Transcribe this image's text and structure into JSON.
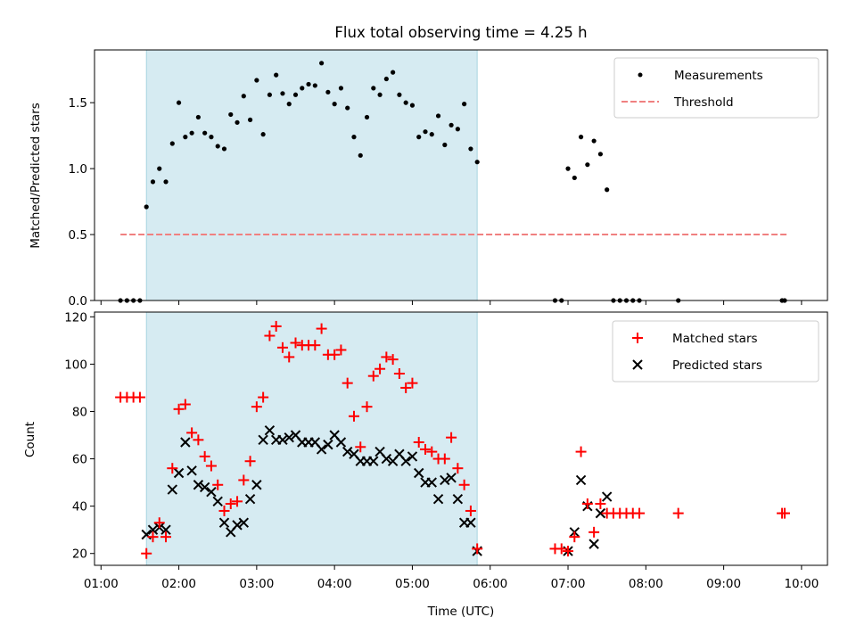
{
  "figure": {
    "title": "Flux total observing time = 4.25 h"
  },
  "chart_data": [
    {
      "type": "scatter",
      "panel": "top",
      "ylabel": "Matched/Predicted stars",
      "xlabel": "",
      "xlim": [
        "00:55",
        "10:20"
      ],
      "ylim": [
        0,
        1.9
      ],
      "yticks": [
        0.0,
        0.5,
        1.0,
        1.5
      ],
      "ytick_labels": [
        "0.0",
        "0.5",
        "1.0",
        "1.5"
      ],
      "legend_position": "top-right",
      "shaded_span": [
        "01:35",
        "05:50"
      ],
      "threshold": {
        "name": "Threshold",
        "y": 0.5,
        "x_range": [
          "01:15",
          "09:50"
        ],
        "color": "#f08080",
        "style": "dashed"
      },
      "series": [
        {
          "name": "Measurements",
          "color": "#000000",
          "marker": "dot",
          "points": [
            [
              "01:15",
              0.0
            ],
            [
              "01:20",
              0.0
            ],
            [
              "01:25",
              0.0
            ],
            [
              "01:30",
              0.0
            ],
            [
              "01:35",
              0.71
            ],
            [
              "01:40",
              0.9
            ],
            [
              "01:45",
              1.0
            ],
            [
              "01:50",
              0.9
            ],
            [
              "01:55",
              1.19
            ],
            [
              "02:00",
              1.5
            ],
            [
              "02:05",
              1.24
            ],
            [
              "02:10",
              1.27
            ],
            [
              "02:15",
              1.39
            ],
            [
              "02:20",
              1.27
            ],
            [
              "02:25",
              1.24
            ],
            [
              "02:30",
              1.17
            ],
            [
              "02:35",
              1.15
            ],
            [
              "02:40",
              1.41
            ],
            [
              "02:45",
              1.35
            ],
            [
              "02:50",
              1.55
            ],
            [
              "02:55",
              1.37
            ],
            [
              "03:00",
              1.67
            ],
            [
              "03:05",
              1.26
            ],
            [
              "03:10",
              1.56
            ],
            [
              "03:15",
              1.71
            ],
            [
              "03:20",
              1.57
            ],
            [
              "03:25",
              1.49
            ],
            [
              "03:30",
              1.56
            ],
            [
              "03:35",
              1.61
            ],
            [
              "03:40",
              1.64
            ],
            [
              "03:45",
              1.63
            ],
            [
              "03:50",
              1.8
            ],
            [
              "03:55",
              1.58
            ],
            [
              "04:00",
              1.49
            ],
            [
              "04:05",
              1.61
            ],
            [
              "04:10",
              1.46
            ],
            [
              "04:15",
              1.24
            ],
            [
              "04:20",
              1.1
            ],
            [
              "04:25",
              1.39
            ],
            [
              "04:30",
              1.61
            ],
            [
              "04:35",
              1.56
            ],
            [
              "04:40",
              1.68
            ],
            [
              "04:45",
              1.73
            ],
            [
              "04:50",
              1.56
            ],
            [
              "04:55",
              1.5
            ],
            [
              "05:00",
              1.48
            ],
            [
              "05:05",
              1.24
            ],
            [
              "05:10",
              1.28
            ],
            [
              "05:15",
              1.26
            ],
            [
              "05:20",
              1.4
            ],
            [
              "05:25",
              1.18
            ],
            [
              "05:30",
              1.33
            ],
            [
              "05:35",
              1.3
            ],
            [
              "05:40",
              1.49
            ],
            [
              "05:45",
              1.15
            ],
            [
              "05:50",
              1.05
            ],
            [
              "06:50",
              0.0
            ],
            [
              "06:55",
              0.0
            ],
            [
              "07:00",
              1.0
            ],
            [
              "07:05",
              0.93
            ],
            [
              "07:10",
              1.24
            ],
            [
              "07:15",
              1.03
            ],
            [
              "07:20",
              1.21
            ],
            [
              "07:25",
              1.11
            ],
            [
              "07:30",
              0.84
            ],
            [
              "07:35",
              0.0
            ],
            [
              "07:40",
              0.0
            ],
            [
              "07:45",
              0.0
            ],
            [
              "07:50",
              0.0
            ],
            [
              "07:55",
              0.0
            ],
            [
              "08:25",
              0.0
            ],
            [
              "09:45",
              0.0
            ],
            [
              "09:47",
              0.0
            ]
          ]
        }
      ]
    },
    {
      "type": "scatter",
      "panel": "bottom",
      "xlabel": "Time (UTC)",
      "ylabel": "Count",
      "xlim": [
        "00:55",
        "10:20"
      ],
      "ylim": [
        15,
        122
      ],
      "yticks": [
        20,
        40,
        60,
        80,
        100,
        120
      ],
      "ytick_labels": [
        "20",
        "40",
        "60",
        "80",
        "100",
        "120"
      ],
      "xticks": [
        "01:00",
        "02:00",
        "03:00",
        "04:00",
        "05:00",
        "06:00",
        "07:00",
        "08:00",
        "09:00",
        "10:00"
      ],
      "xtick_labels": [
        "01:00",
        "02:00",
        "03:00",
        "04:00",
        "05:00",
        "06:00",
        "07:00",
        "08:00",
        "09:00",
        "10:00"
      ],
      "legend_position": "top-right",
      "shaded_span": [
        "01:35",
        "05:50"
      ],
      "series": [
        {
          "name": "Matched stars",
          "color": "#ff0000",
          "marker": "plus",
          "points": [
            [
              "01:15",
              86
            ],
            [
              "01:20",
              86
            ],
            [
              "01:25",
              86
            ],
            [
              "01:30",
              86
            ],
            [
              "01:35",
              20
            ],
            [
              "01:40",
              27
            ],
            [
              "01:45",
              33
            ],
            [
              "01:50",
              27
            ],
            [
              "01:55",
              56
            ],
            [
              "02:00",
              81
            ],
            [
              "02:05",
              83
            ],
            [
              "02:10",
              71
            ],
            [
              "02:15",
              68
            ],
            [
              "02:20",
              61
            ],
            [
              "02:25",
              57
            ],
            [
              "02:30",
              49
            ],
            [
              "02:35",
              38
            ],
            [
              "02:40",
              41
            ],
            [
              "02:45",
              42
            ],
            [
              "02:50",
              51
            ],
            [
              "02:55",
              59
            ],
            [
              "03:00",
              82
            ],
            [
              "03:05",
              86
            ],
            [
              "03:10",
              112
            ],
            [
              "03:15",
              116
            ],
            [
              "03:20",
              107
            ],
            [
              "03:25",
              103
            ],
            [
              "03:30",
              109
            ],
            [
              "03:35",
              108
            ],
            [
              "03:40",
              108
            ],
            [
              "03:45",
              108
            ],
            [
              "03:50",
              115
            ],
            [
              "03:55",
              104
            ],
            [
              "04:00",
              104
            ],
            [
              "04:05",
              106
            ],
            [
              "04:10",
              92
            ],
            [
              "04:15",
              78
            ],
            [
              "04:20",
              65
            ],
            [
              "04:25",
              82
            ],
            [
              "04:30",
              95
            ],
            [
              "04:35",
              98
            ],
            [
              "04:40",
              103
            ],
            [
              "04:45",
              102
            ],
            [
              "04:50",
              96
            ],
            [
              "04:55",
              90
            ],
            [
              "05:00",
              92
            ],
            [
              "05:05",
              67
            ],
            [
              "05:10",
              64
            ],
            [
              "05:15",
              63
            ],
            [
              "05:20",
              60
            ],
            [
              "05:25",
              60
            ],
            [
              "05:30",
              69
            ],
            [
              "05:35",
              56
            ],
            [
              "05:40",
              49
            ],
            [
              "05:45",
              38
            ],
            [
              "05:50",
              22
            ],
            [
              "06:50",
              22
            ],
            [
              "06:55",
              22
            ],
            [
              "07:00",
              21
            ],
            [
              "07:05",
              27
            ],
            [
              "07:10",
              63
            ],
            [
              "07:15",
              41
            ],
            [
              "07:20",
              29
            ],
            [
              "07:25",
              41
            ],
            [
              "07:30",
              37
            ],
            [
              "07:35",
              37
            ],
            [
              "07:40",
              37
            ],
            [
              "07:45",
              37
            ],
            [
              "07:50",
              37
            ],
            [
              "07:55",
              37
            ],
            [
              "08:25",
              37
            ],
            [
              "09:45",
              37
            ],
            [
              "09:47",
              37
            ]
          ]
        },
        {
          "name": "Predicted stars",
          "color": "#000000",
          "marker": "x",
          "points": [
            [
              "01:35",
              28
            ],
            [
              "01:40",
              30
            ],
            [
              "01:45",
              31
            ],
            [
              "01:50",
              30
            ],
            [
              "01:55",
              47
            ],
            [
              "02:00",
              54
            ],
            [
              "02:05",
              67
            ],
            [
              "02:10",
              55
            ],
            [
              "02:15",
              49
            ],
            [
              "02:20",
              48
            ],
            [
              "02:25",
              46
            ],
            [
              "02:30",
              42
            ],
            [
              "02:35",
              33
            ],
            [
              "02:40",
              29
            ],
            [
              "02:45",
              32
            ],
            [
              "02:50",
              33
            ],
            [
              "02:55",
              43
            ],
            [
              "03:00",
              49
            ],
            [
              "03:05",
              68
            ],
            [
              "03:10",
              72
            ],
            [
              "03:15",
              68
            ],
            [
              "03:20",
              68
            ],
            [
              "03:25",
              69
            ],
            [
              "03:30",
              70
            ],
            [
              "03:35",
              67
            ],
            [
              "03:40",
              67
            ],
            [
              "03:45",
              67
            ],
            [
              "03:50",
              64
            ],
            [
              "03:55",
              66
            ],
            [
              "04:00",
              70
            ],
            [
              "04:05",
              67
            ],
            [
              "04:10",
              63
            ],
            [
              "04:15",
              62
            ],
            [
              "04:20",
              59
            ],
            [
              "04:25",
              59
            ],
            [
              "04:30",
              59
            ],
            [
              "04:35",
              63
            ],
            [
              "04:40",
              60
            ],
            [
              "04:45",
              59
            ],
            [
              "04:50",
              62
            ],
            [
              "04:55",
              59
            ],
            [
              "05:00",
              61
            ],
            [
              "05:05",
              54
            ],
            [
              "05:10",
              50
            ],
            [
              "05:15",
              50
            ],
            [
              "05:20",
              43
            ],
            [
              "05:25",
              51
            ],
            [
              "05:30",
              52
            ],
            [
              "05:35",
              43
            ],
            [
              "05:40",
              33
            ],
            [
              "05:45",
              33
            ],
            [
              "05:50",
              21
            ],
            [
              "07:00",
              21
            ],
            [
              "07:05",
              29
            ],
            [
              "07:10",
              51
            ],
            [
              "07:15",
              40
            ],
            [
              "07:20",
              24
            ],
            [
              "07:25",
              37
            ],
            [
              "07:30",
              44
            ]
          ]
        }
      ]
    }
  ]
}
